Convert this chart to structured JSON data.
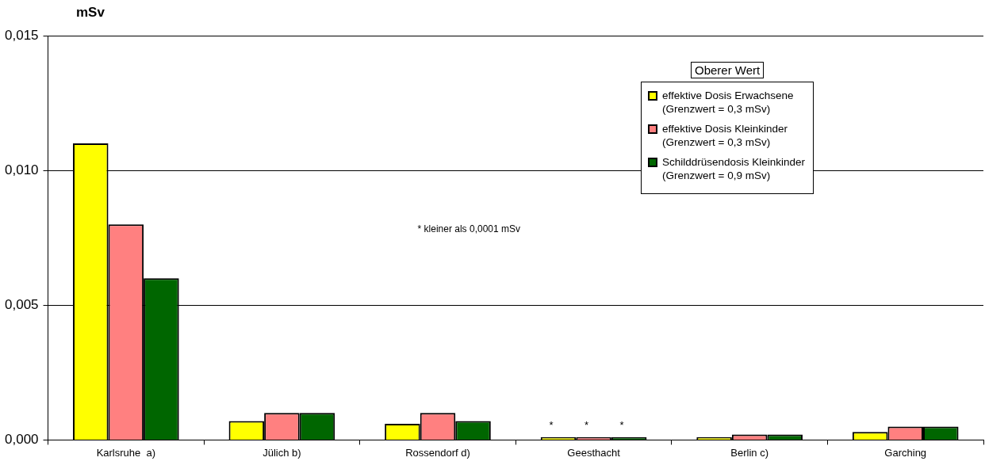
{
  "chart_data": {
    "type": "bar",
    "ylabel": "mSv",
    "legend_title": "Oberer Wert",
    "categories": [
      "Karlsruhe  a)",
      "Jülich b)",
      "Rossendorf d)",
      "Geesthacht",
      "Berlin c)",
      "Garching"
    ],
    "series": [
      {
        "name": "effektive Dosis Erwachsene\n(Grenzwert = 0,3 mSv)",
        "color": "#ffff00",
        "values": [
          0.011,
          0.0007,
          0.0006,
          0.0001,
          0.0001,
          0.0003
        ]
      },
      {
        "name": "effektive Dosis Kleinkinder\n(Grenzwert = 0,3 mSv)",
        "color": "#ff8080",
        "values": [
          0.008,
          0.001,
          0.001,
          0.0001,
          0.0002,
          0.0005
        ]
      },
      {
        "name": "Schilddrüsendosis Kleinkinder\n(Grenzwert = 0,9 mSv)",
        "color": "#006600",
        "values": [
          0.006,
          0.001,
          0.0007,
          0.0001,
          0.0002,
          0.0005
        ]
      }
    ],
    "ylim": [
      0,
      0.015
    ],
    "yticks": [
      {
        "value": 0,
        "label": "0,000"
      },
      {
        "value": 0.005,
        "label": "0,005"
      },
      {
        "value": 0.01,
        "label": "0,010"
      },
      {
        "value": 0.015,
        "label": "0,015"
      }
    ],
    "grid": "y",
    "legend": "top right",
    "annotations": [
      "* kleiner als 0,0001 mSv",
      {
        "text": "* * *",
        "x": "Geesthacht",
        "y": 0.0001
      }
    ]
  }
}
